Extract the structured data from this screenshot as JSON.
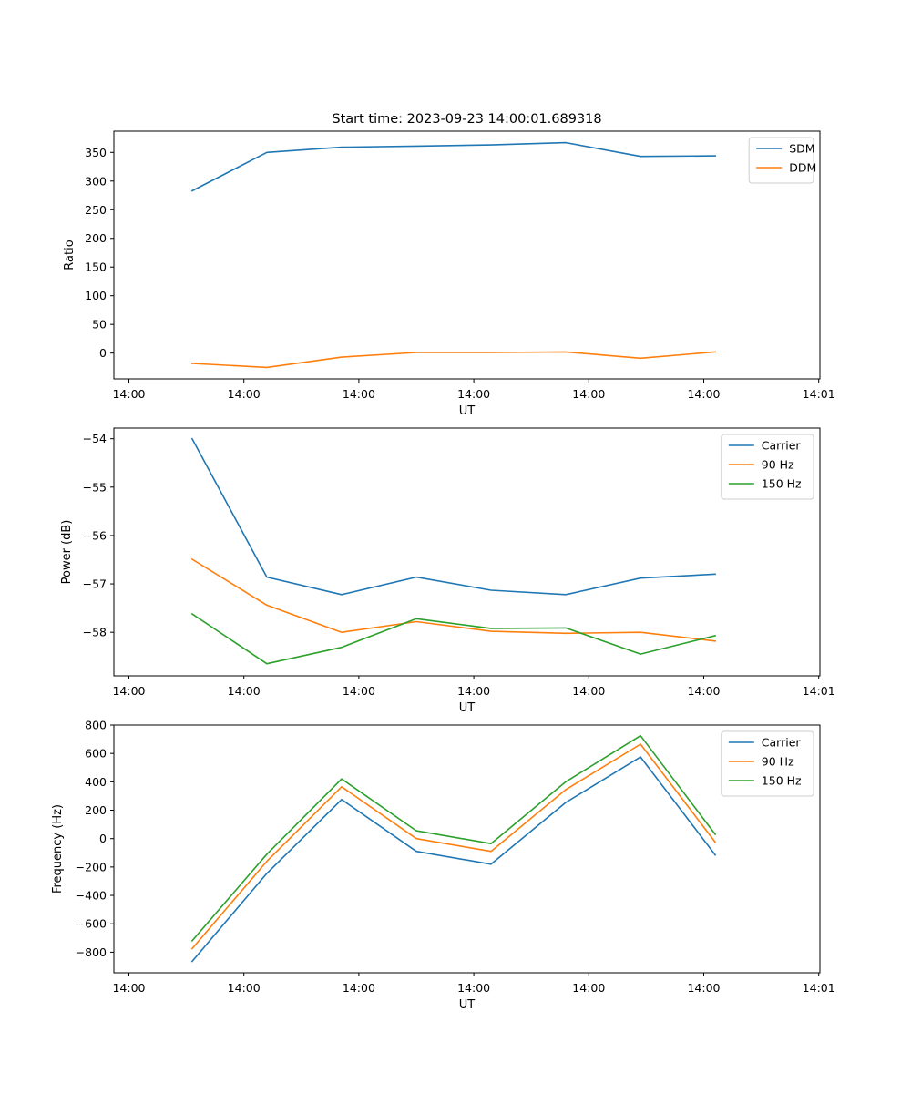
{
  "figure_title": "Start time: 2023-09-23 14:00:01.689318",
  "chart_data": [
    {
      "type": "line",
      "title": "Start time: 2023-09-23 14:00:01.689318",
      "xlabel": "UT",
      "ylabel": "Ratio",
      "x": [
        0.55,
        1.2,
        1.85,
        2.5,
        3.15,
        3.8,
        4.45,
        5.1
      ],
      "xlim": [
        0,
        6
      ],
      "xticks": [
        0,
        1,
        2,
        3,
        4,
        5,
        6
      ],
      "xtick_labels": [
        "14:00",
        "14:00",
        "14:00",
        "14:00",
        "14:00",
        "14:00",
        "14:01"
      ],
      "ylim": [
        -45,
        387
      ],
      "yticks": [
        0,
        50,
        100,
        150,
        200,
        250,
        300,
        350
      ],
      "ytick_labels": [
        "0",
        "50",
        "100",
        "150",
        "200",
        "250",
        "300",
        "350"
      ],
      "legend_position": "top-right",
      "series": [
        {
          "name": "SDM",
          "color": "#1f77b4",
          "values": [
            283,
            350,
            359,
            361,
            363,
            367,
            343,
            344
          ]
        },
        {
          "name": "DDM",
          "color": "#ff7f0e",
          "values": [
            -18,
            -25,
            -7,
            1,
            1,
            2,
            -9,
            2
          ]
        }
      ]
    },
    {
      "type": "line",
      "title": "",
      "xlabel": "UT",
      "ylabel": "Power (dB)",
      "x": [
        0.55,
        1.2,
        1.85,
        2.5,
        3.15,
        3.8,
        4.45,
        5.1
      ],
      "xlim": [
        0,
        6
      ],
      "xticks": [
        0,
        1,
        2,
        3,
        4,
        5,
        6
      ],
      "xtick_labels": [
        "14:00",
        "14:00",
        "14:00",
        "14:00",
        "14:00",
        "14:00",
        "14:01"
      ],
      "ylim": [
        -58.9,
        -53.78
      ],
      "yticks": [
        -54,
        -55,
        -56,
        -57,
        -58
      ],
      "ytick_labels": [
        "−54",
        "−55",
        "−56",
        "−57",
        "−58"
      ],
      "legend_position": "top-right",
      "series": [
        {
          "name": "Carrier",
          "color": "#1f77b4",
          "values": [
            -54.0,
            -56.86,
            -57.22,
            -56.86,
            -57.13,
            -57.22,
            -56.88,
            -56.8
          ]
        },
        {
          "name": "90 Hz",
          "color": "#ff7f0e",
          "values": [
            -56.49,
            -57.44,
            -58.0,
            -57.78,
            -57.98,
            -58.02,
            -58.0,
            -58.18
          ]
        },
        {
          "name": "150 Hz",
          "color": "#2ca02c",
          "values": [
            -57.62,
            -58.65,
            -58.31,
            -57.72,
            -57.92,
            -57.91,
            -58.45,
            -58.07
          ]
        }
      ]
    },
    {
      "type": "line",
      "title": "",
      "xlabel": "UT",
      "ylabel": "Frequency (Hz)",
      "x": [
        0.55,
        1.2,
        1.85,
        2.5,
        3.15,
        3.8,
        4.45,
        5.1
      ],
      "xlim": [
        0,
        6
      ],
      "xticks": [
        0,
        1,
        2,
        3,
        4,
        5,
        6
      ],
      "xtick_labels": [
        "14:00",
        "14:00",
        "14:00",
        "14:00",
        "14:00",
        "14:00",
        "14:01"
      ],
      "ylim": [
        -945,
        800
      ],
      "yticks": [
        -800,
        -600,
        -400,
        -200,
        0,
        200,
        400,
        600,
        800
      ],
      "ytick_labels": [
        "−800",
        "−600",
        "−400",
        "−200",
        "0",
        "200",
        "400",
        "600",
        "800"
      ],
      "legend_position": "top-right",
      "series": [
        {
          "name": "Carrier",
          "color": "#1f77b4",
          "values": [
            -865,
            -245,
            275,
            -90,
            -180,
            255,
            575,
            -115
          ]
        },
        {
          "name": "90 Hz",
          "color": "#ff7f0e",
          "values": [
            -775,
            -160,
            365,
            0,
            -90,
            345,
            665,
            -25
          ]
        },
        {
          "name": "150 Hz",
          "color": "#2ca02c",
          "values": [
            -720,
            -110,
            420,
            55,
            -35,
            400,
            725,
            30
          ]
        }
      ]
    }
  ]
}
